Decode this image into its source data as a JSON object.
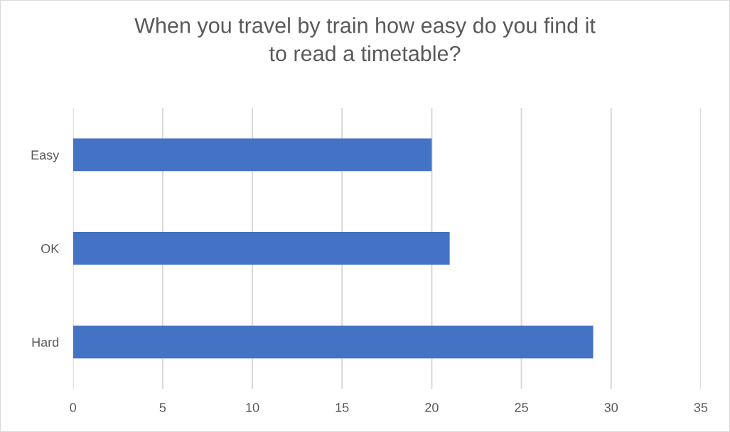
{
  "chart_data": {
    "type": "bar",
    "orientation": "horizontal",
    "title": "When you travel by train how easy do you find it\nto read a timetable?",
    "categories": [
      "Easy",
      "OK",
      "Hard"
    ],
    "values": [
      20,
      21,
      29
    ],
    "color": "#4472c4",
    "xlim": [
      0,
      35
    ],
    "xticks": [
      0,
      5,
      10,
      15,
      20,
      25,
      30,
      35
    ],
    "grid": "x"
  }
}
